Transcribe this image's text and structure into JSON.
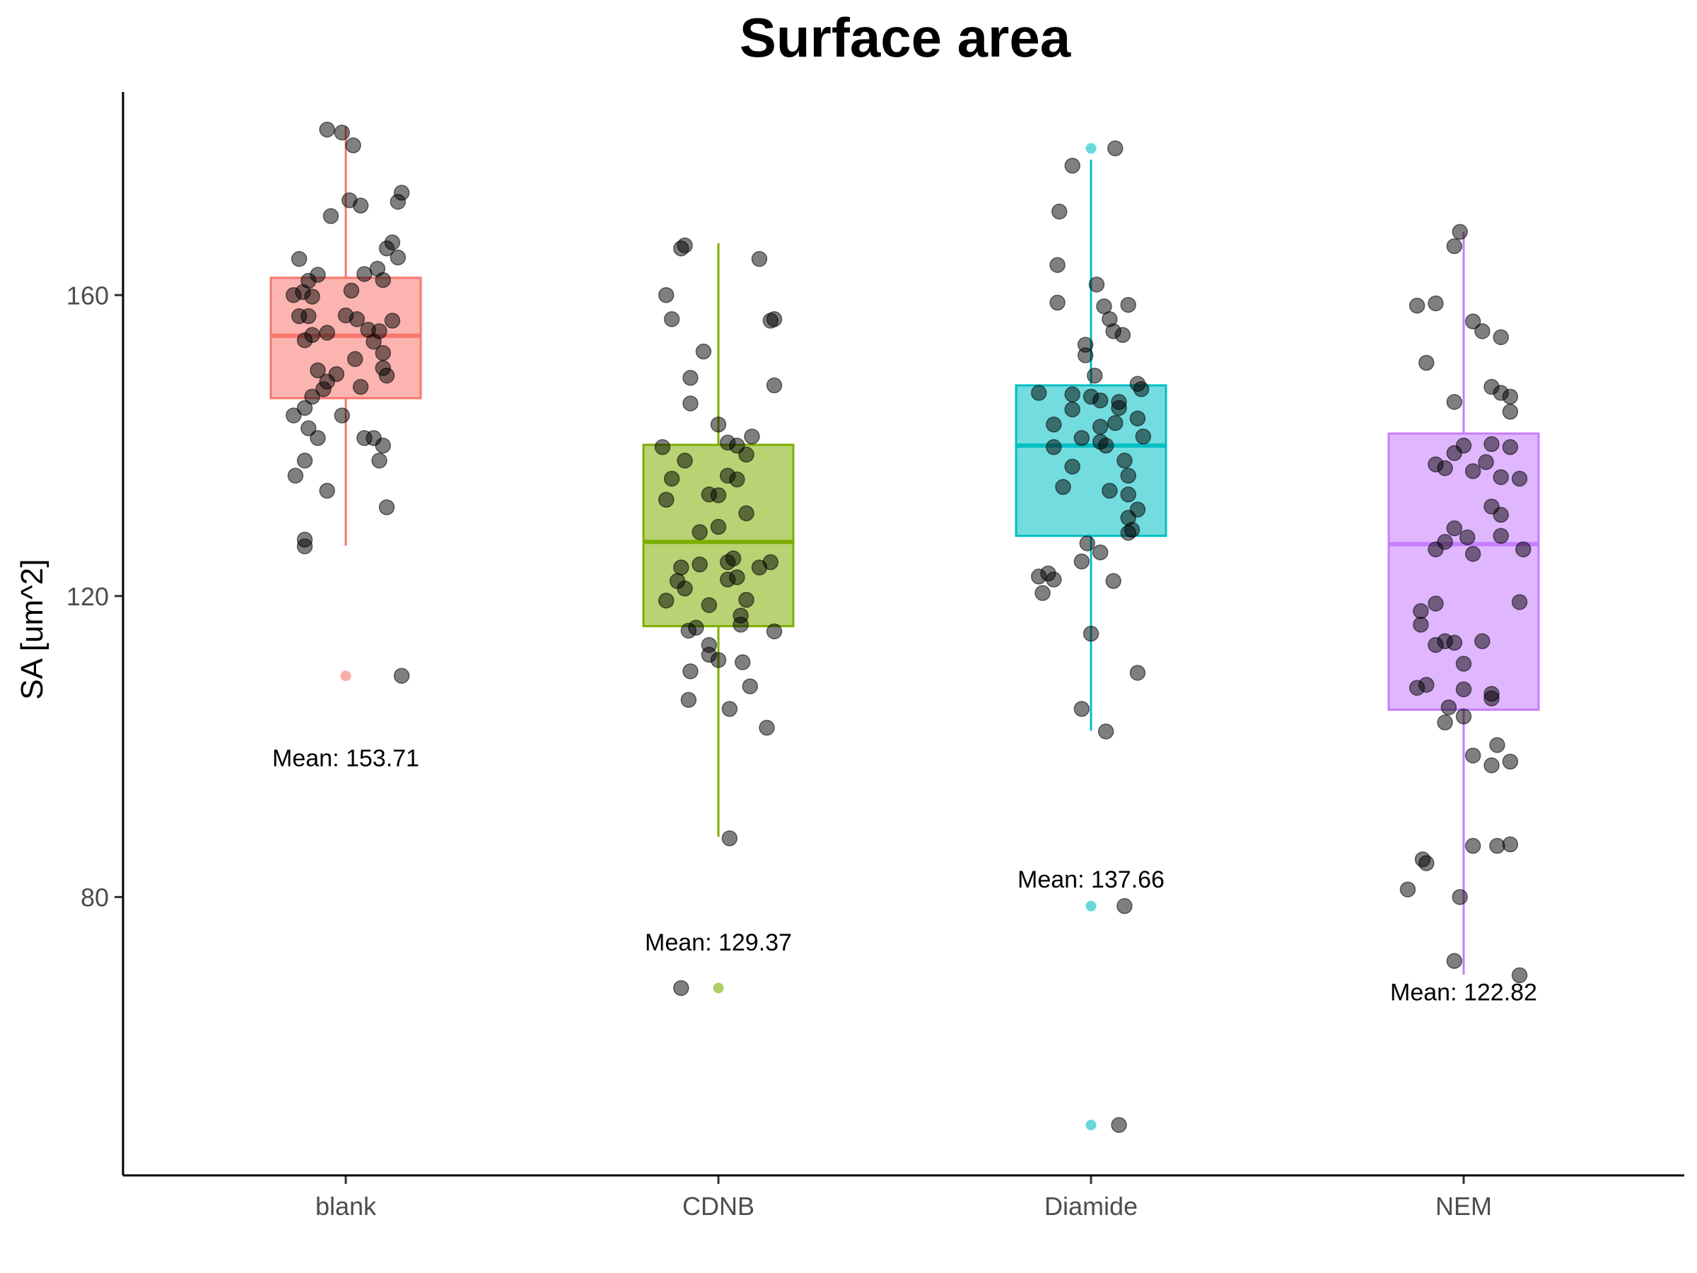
{
  "chart_data": {
    "type": "box",
    "title": "Surface area",
    "xlabel": "",
    "ylabel": "SA [um^2]",
    "ylim": [
      43,
      187
    ],
    "yticks": [
      80,
      120,
      160
    ],
    "categories": [
      "blank",
      "CDNB",
      "Diamide",
      "NEM"
    ],
    "colors": [
      "#F8766D",
      "#7CAE00",
      "#00BFC4",
      "#C77CFF"
    ],
    "grid": false,
    "legend": "none",
    "boxes": [
      {
        "category": "blank",
        "whisker_low": 126.7,
        "q1": 146.3,
        "median": 154.6,
        "q3": 162.3,
        "whisker_high": 182.4,
        "outliers": [
          109.4
        ],
        "mean_label": "Mean: 153.71",
        "mean_label_y": 98.5
      },
      {
        "category": "CDNB",
        "whisker_low": 88.0,
        "q1": 116.0,
        "median": 127.2,
        "q3": 140.1,
        "whisker_high": 166.9,
        "outliers": [
          67.9
        ],
        "mean_label": "Mean: 129.37",
        "mean_label_y": 74.0
      },
      {
        "category": "Diamide",
        "whisker_low": 102.1,
        "q1": 128.0,
        "median": 140.0,
        "q3": 148.0,
        "whisker_high": 178.0,
        "outliers": [
          179.5,
          78.8,
          49.7
        ],
        "mean_label": "Mean: 137.66",
        "mean_label_y": 82.4
      },
      {
        "category": "NEM",
        "whisker_low": 69.7,
        "q1": 104.9,
        "median": 126.9,
        "q3": 141.6,
        "whisker_high": 168.4,
        "outliers": [],
        "mean_label": "Mean: 122.82",
        "mean_label_y": 67.4
      }
    ],
    "points": [
      [
        [
          -0.1,
          182.0
        ],
        [
          -0.02,
          181.6
        ],
        [
          0.04,
          179.9
        ],
        [
          0.02,
          172.6
        ],
        [
          0.08,
          171.9
        ],
        [
          0.3,
          173.6
        ],
        [
          0.28,
          172.4
        ],
        [
          -0.08,
          170.5
        ],
        [
          0.25,
          167.0
        ],
        [
          0.22,
          166.2
        ],
        [
          0.28,
          165.0
        ],
        [
          -0.25,
          164.8
        ],
        [
          0.17,
          163.5
        ],
        [
          0.1,
          162.8
        ],
        [
          0.2,
          162.0
        ],
        [
          -0.15,
          162.7
        ],
        [
          -0.2,
          161.9
        ],
        [
          -0.23,
          160.4
        ],
        [
          -0.28,
          160.0
        ],
        [
          0.03,
          160.6
        ],
        [
          -0.18,
          159.8
        ],
        [
          0.0,
          157.3
        ],
        [
          -0.2,
          157.2
        ],
        [
          0.06,
          156.8
        ],
        [
          -0.25,
          157.2
        ],
        [
          0.25,
          156.6
        ],
        [
          0.12,
          155.4
        ],
        [
          -0.1,
          155.0
        ],
        [
          0.18,
          155.2
        ],
        [
          -0.18,
          154.7
        ],
        [
          0.15,
          153.8
        ],
        [
          -0.22,
          154.0
        ],
        [
          0.2,
          152.3
        ],
        [
          0.05,
          151.5
        ],
        [
          -0.15,
          150.0
        ],
        [
          -0.05,
          149.5
        ],
        [
          0.2,
          150.3
        ],
        [
          0.22,
          149.3
        ],
        [
          -0.1,
          148.5
        ],
        [
          0.08,
          147.8
        ],
        [
          -0.12,
          147.5
        ],
        [
          -0.18,
          146.5
        ],
        [
          -0.22,
          145.0
        ],
        [
          -0.02,
          144.0
        ],
        [
          -0.28,
          144.0
        ],
        [
          0.1,
          141.0
        ],
        [
          -0.2,
          142.3
        ],
        [
          0.15,
          141.0
        ],
        [
          -0.15,
          141.0
        ],
        [
          0.2,
          140.0
        ],
        [
          -0.22,
          138.0
        ],
        [
          0.18,
          138.0
        ],
        [
          -0.27,
          136.0
        ],
        [
          -0.1,
          134.0
        ],
        [
          0.22,
          131.8
        ],
        [
          -0.22,
          127.5
        ],
        [
          -0.22,
          126.6
        ],
        [
          0.3,
          109.4
        ]
      ],
      [
        [
          -0.2,
          166.2
        ],
        [
          -0.18,
          166.6
        ],
        [
          0.22,
          164.8
        ],
        [
          -0.28,
          160.0
        ],
        [
          -0.25,
          156.8
        ],
        [
          0.3,
          156.8
        ],
        [
          0.28,
          156.6
        ],
        [
          -0.08,
          152.5
        ],
        [
          -0.15,
          149.0
        ],
        [
          0.3,
          148.0
        ],
        [
          -0.15,
          145.6
        ],
        [
          0.0,
          142.8
        ],
        [
          0.18,
          141.2
        ],
        [
          0.05,
          140.4
        ],
        [
          0.1,
          140.0
        ],
        [
          -0.3,
          139.8
        ],
        [
          -0.18,
          138.0
        ],
        [
          0.15,
          138.8
        ],
        [
          0.05,
          136.0
        ],
        [
          0.1,
          135.5
        ],
        [
          -0.25,
          135.6
        ],
        [
          -0.05,
          133.5
        ],
        [
          0.0,
          133.4
        ],
        [
          -0.28,
          132.8
        ],
        [
          0.15,
          131.0
        ],
        [
          0.0,
          129.2
        ],
        [
          -0.1,
          128.5
        ],
        [
          0.08,
          125.0
        ],
        [
          0.05,
          124.5
        ],
        [
          -0.2,
          123.8
        ],
        [
          -0.1,
          124.2
        ],
        [
          0.28,
          124.5
        ],
        [
          0.22,
          123.8
        ],
        [
          -0.22,
          122.0
        ],
        [
          0.1,
          122.5
        ],
        [
          0.05,
          122.2
        ],
        [
          -0.18,
          121.0
        ],
        [
          0.15,
          119.5
        ],
        [
          -0.28,
          119.4
        ],
        [
          -0.05,
          118.8
        ],
        [
          0.12,
          117.4
        ],
        [
          0.12,
          116.2
        ],
        [
          -0.12,
          115.8
        ],
        [
          -0.16,
          115.4
        ],
        [
          0.3,
          115.3
        ],
        [
          -0.05,
          113.5
        ],
        [
          -0.05,
          112.2
        ],
        [
          0.0,
          111.5
        ],
        [
          0.13,
          111.2
        ],
        [
          -0.15,
          110.0
        ],
        [
          0.17,
          108.0
        ],
        [
          -0.16,
          106.2
        ],
        [
          0.06,
          105.0
        ],
        [
          0.26,
          102.5
        ],
        [
          0.06,
          87.8
        ],
        [
          -0.2,
          67.9
        ]
      ],
      [
        [
          0.13,
          179.5
        ],
        [
          -0.1,
          177.2
        ],
        [
          -0.17,
          171.1
        ],
        [
          0.03,
          161.4
        ],
        [
          -0.18,
          164.0
        ],
        [
          0.2,
          158.7
        ],
        [
          -0.18,
          159.0
        ],
        [
          0.07,
          158.5
        ],
        [
          0.1,
          156.8
        ],
        [
          0.12,
          155.2
        ],
        [
          0.17,
          154.7
        ],
        [
          -0.03,
          153.4
        ],
        [
          -0.03,
          152.0
        ],
        [
          0.02,
          149.3
        ],
        [
          0.25,
          148.2
        ],
        [
          0.27,
          147.5
        ],
        [
          -0.28,
          147.0
        ],
        [
          -0.1,
          146.8
        ],
        [
          0.0,
          146.5
        ],
        [
          0.05,
          146.0
        ],
        [
          0.15,
          145.8
        ],
        [
          0.15,
          145.0
        ],
        [
          -0.1,
          144.8
        ],
        [
          0.25,
          143.6
        ],
        [
          0.13,
          143.0
        ],
        [
          -0.2,
          142.8
        ],
        [
          0.05,
          142.5
        ],
        [
          0.28,
          141.2
        ],
        [
          -0.05,
          141.0
        ],
        [
          0.05,
          140.5
        ],
        [
          0.08,
          140.0
        ],
        [
          -0.2,
          139.8
        ],
        [
          0.18,
          138.0
        ],
        [
          -0.1,
          137.2
        ],
        [
          0.2,
          136.0
        ],
        [
          -0.15,
          134.5
        ],
        [
          0.1,
          134.0
        ],
        [
          0.2,
          133.5
        ],
        [
          0.25,
          131.5
        ],
        [
          0.2,
          130.4
        ],
        [
          0.22,
          128.8
        ],
        [
          0.2,
          128.4
        ],
        [
          -0.02,
          127.0
        ],
        [
          0.05,
          125.8
        ],
        [
          -0.05,
          124.6
        ],
        [
          -0.23,
          123.0
        ],
        [
          -0.28,
          122.6
        ],
        [
          -0.2,
          122.2
        ],
        [
          0.12,
          122.0
        ],
        [
          -0.26,
          120.4
        ],
        [
          0.0,
          115.0
        ],
        [
          0.25,
          109.8
        ],
        [
          -0.05,
          105.0
        ],
        [
          0.08,
          102.0
        ],
        [
          0.18,
          78.8
        ],
        [
          0.15,
          49.7
        ]
      ],
      [
        [
          -0.02,
          168.4
        ],
        [
          -0.05,
          166.5
        ],
        [
          -0.25,
          158.6
        ],
        [
          -0.15,
          158.9
        ],
        [
          0.05,
          156.5
        ],
        [
          0.1,
          155.2
        ],
        [
          0.2,
          154.4
        ],
        [
          -0.2,
          151.0
        ],
        [
          0.15,
          147.8
        ],
        [
          0.2,
          147.0
        ],
        [
          0.25,
          146.5
        ],
        [
          0.25,
          144.5
        ],
        [
          -0.05,
          145.8
        ],
        [
          0.15,
          140.2
        ],
        [
          0.25,
          139.8
        ],
        [
          -0.05,
          139.0
        ],
        [
          0.0,
          140.0
        ],
        [
          0.12,
          137.8
        ],
        [
          -0.15,
          137.5
        ],
        [
          0.05,
          136.6
        ],
        [
          0.2,
          135.8
        ],
        [
          -0.1,
          137.0
        ],
        [
          0.3,
          135.6
        ],
        [
          0.15,
          131.9
        ],
        [
          0.2,
          130.8
        ],
        [
          -0.05,
          129.0
        ],
        [
          -0.1,
          127.2
        ],
        [
          0.2,
          128.0
        ],
        [
          0.02,
          127.8
        ],
        [
          -0.15,
          126.2
        ],
        [
          0.32,
          126.2
        ],
        [
          0.05,
          125.6
        ],
        [
          -0.15,
          119.0
        ],
        [
          0.3,
          119.2
        ],
        [
          -0.23,
          118.0
        ],
        [
          -0.23,
          116.2
        ],
        [
          -0.1,
          114.0
        ],
        [
          -0.05,
          113.8
        ],
        [
          0.1,
          114.0
        ],
        [
          -0.15,
          113.5
        ],
        [
          0.0,
          111.0
        ],
        [
          -0.2,
          108.2
        ],
        [
          0.0,
          107.6
        ],
        [
          -0.25,
          107.8
        ],
        [
          0.15,
          107.0
        ],
        [
          0.15,
          106.4
        ],
        [
          -0.08,
          105.2
        ],
        [
          0.0,
          104.0
        ],
        [
          -0.1,
          103.2
        ],
        [
          0.18,
          100.2
        ],
        [
          0.05,
          98.8
        ],
        [
          0.25,
          98.0
        ],
        [
          0.15,
          97.5
        ],
        [
          -0.22,
          85.0
        ],
        [
          -0.2,
          84.5
        ],
        [
          0.25,
          87.0
        ],
        [
          0.18,
          86.8
        ],
        [
          0.05,
          86.8
        ],
        [
          -0.02,
          80.0
        ],
        [
          -0.3,
          81.0
        ],
        [
          -0.05,
          71.5
        ],
        [
          0.3,
          69.6
        ]
      ]
    ]
  }
}
